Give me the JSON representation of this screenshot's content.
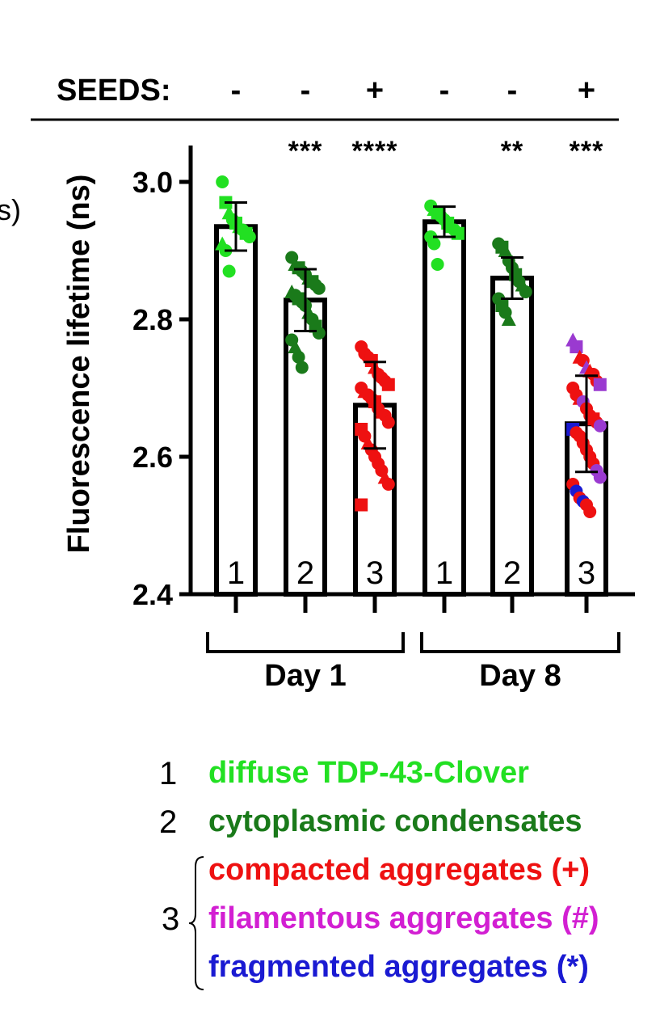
{
  "header": {
    "seeds_label": "SEEDS:",
    "seeds_signs": [
      "-",
      "-",
      "+",
      "-",
      "-",
      "+"
    ]
  },
  "significance": [
    "",
    "***",
    "****",
    "",
    "**",
    "***"
  ],
  "colors": {
    "bright_green": "#22e022",
    "dark_green": "#1a7a1a",
    "red": "#ee1111",
    "magenta": "#d21fd2",
    "blue": "#1a1ad2",
    "purple": "#9a3ad0"
  },
  "chart_data": {
    "type": "bar",
    "ylabel": "Fluorescence lifetime (ns)",
    "ylim": [
      2.4,
      3.05
    ],
    "yticks": [
      2.4,
      2.6,
      2.8,
      3.0
    ],
    "ytick_labels": [
      "2.4",
      "2.6",
      "2.8",
      "3.0"
    ],
    "groups": [
      {
        "label": "Day 1",
        "bars": [
          0,
          1,
          2
        ]
      },
      {
        "label": "Day 8",
        "bars": [
          3,
          4,
          5
        ]
      }
    ],
    "bars": [
      {
        "label": "1",
        "seeds": "-",
        "mean": 2.935,
        "sd": 0.035,
        "sig": "",
        "points": [
          {
            "y": 3.0,
            "shape": "circle",
            "color": "bright_green"
          },
          {
            "y": 2.97,
            "shape": "square",
            "color": "bright_green"
          },
          {
            "y": 2.955,
            "shape": "triangle",
            "color": "bright_green"
          },
          {
            "y": 2.945,
            "shape": "circle",
            "color": "bright_green"
          },
          {
            "y": 2.94,
            "shape": "square",
            "color": "bright_green"
          },
          {
            "y": 2.935,
            "shape": "triangle",
            "color": "bright_green"
          },
          {
            "y": 2.93,
            "shape": "circle",
            "color": "bright_green"
          },
          {
            "y": 2.925,
            "shape": "square",
            "color": "bright_green"
          },
          {
            "y": 2.92,
            "shape": "circle",
            "color": "bright_green"
          },
          {
            "y": 2.91,
            "shape": "triangle",
            "color": "bright_green"
          },
          {
            "y": 2.9,
            "shape": "circle",
            "color": "bright_green"
          },
          {
            "y": 2.87,
            "shape": "circle",
            "color": "bright_green"
          }
        ]
      },
      {
        "label": "2",
        "seeds": "-",
        "mean": 2.828,
        "sd": 0.045,
        "sig": "***",
        "points": [
          {
            "y": 2.89,
            "shape": "circle",
            "color": "dark_green"
          },
          {
            "y": 2.88,
            "shape": "triangle",
            "color": "dark_green"
          },
          {
            "y": 2.875,
            "shape": "square",
            "color": "dark_green"
          },
          {
            "y": 2.87,
            "shape": "circle",
            "color": "dark_green"
          },
          {
            "y": 2.865,
            "shape": "circle",
            "color": "dark_green"
          },
          {
            "y": 2.86,
            "shape": "triangle",
            "color": "dark_green"
          },
          {
            "y": 2.855,
            "shape": "square",
            "color": "dark_green"
          },
          {
            "y": 2.85,
            "shape": "circle",
            "color": "dark_green"
          },
          {
            "y": 2.845,
            "shape": "circle",
            "color": "dark_green"
          },
          {
            "y": 2.84,
            "shape": "triangle",
            "color": "dark_green"
          },
          {
            "y": 2.835,
            "shape": "circle",
            "color": "dark_green"
          },
          {
            "y": 2.83,
            "shape": "square",
            "color": "dark_green"
          },
          {
            "y": 2.825,
            "shape": "circle",
            "color": "dark_green"
          },
          {
            "y": 2.82,
            "shape": "circle",
            "color": "dark_green"
          },
          {
            "y": 2.81,
            "shape": "triangle",
            "color": "dark_green"
          },
          {
            "y": 2.8,
            "shape": "circle",
            "color": "dark_green"
          },
          {
            "y": 2.79,
            "shape": "square",
            "color": "dark_green"
          },
          {
            "y": 2.78,
            "shape": "circle",
            "color": "dark_green"
          },
          {
            "y": 2.77,
            "shape": "circle",
            "color": "dark_green"
          },
          {
            "y": 2.76,
            "shape": "triangle",
            "color": "dark_green"
          },
          {
            "y": 2.745,
            "shape": "circle",
            "color": "dark_green"
          },
          {
            "y": 2.73,
            "shape": "circle",
            "color": "dark_green"
          }
        ]
      },
      {
        "label": "3",
        "seeds": "+",
        "mean": 2.675,
        "sd": 0.063,
        "sig": "****",
        "points": [
          {
            "y": 2.76,
            "shape": "circle",
            "color": "red"
          },
          {
            "y": 2.75,
            "shape": "circle",
            "color": "red"
          },
          {
            "y": 2.745,
            "shape": "circle",
            "color": "red"
          },
          {
            "y": 2.74,
            "shape": "square",
            "color": "red"
          },
          {
            "y": 2.73,
            "shape": "triangle",
            "color": "red"
          },
          {
            "y": 2.72,
            "shape": "circle",
            "color": "red"
          },
          {
            "y": 2.715,
            "shape": "circle",
            "color": "red"
          },
          {
            "y": 2.71,
            "shape": "circle",
            "color": "red"
          },
          {
            "y": 2.705,
            "shape": "square",
            "color": "red"
          },
          {
            "y": 2.7,
            "shape": "circle",
            "color": "red"
          },
          {
            "y": 2.695,
            "shape": "triangle",
            "color": "red"
          },
          {
            "y": 2.69,
            "shape": "circle",
            "color": "red"
          },
          {
            "y": 2.685,
            "shape": "circle",
            "color": "red"
          },
          {
            "y": 2.68,
            "shape": "square",
            "color": "red"
          },
          {
            "y": 2.67,
            "shape": "circle",
            "color": "red"
          },
          {
            "y": 2.665,
            "shape": "triangle",
            "color": "red"
          },
          {
            "y": 2.66,
            "shape": "circle",
            "color": "red"
          },
          {
            "y": 2.65,
            "shape": "circle",
            "color": "red"
          },
          {
            "y": 2.64,
            "shape": "square",
            "color": "red"
          },
          {
            "y": 2.63,
            "shape": "circle",
            "color": "red"
          },
          {
            "y": 2.62,
            "shape": "triangle",
            "color": "red"
          },
          {
            "y": 2.61,
            "shape": "circle",
            "color": "red"
          },
          {
            "y": 2.6,
            "shape": "circle",
            "color": "red"
          },
          {
            "y": 2.59,
            "shape": "circle",
            "color": "red"
          },
          {
            "y": 2.58,
            "shape": "circle",
            "color": "red"
          },
          {
            "y": 2.57,
            "shape": "triangle",
            "color": "red"
          },
          {
            "y": 2.56,
            "shape": "circle",
            "color": "red"
          },
          {
            "y": 2.53,
            "shape": "square",
            "color": "red"
          }
        ]
      },
      {
        "label": "1",
        "seeds": "-",
        "mean": 2.942,
        "sd": 0.022,
        "sig": "",
        "points": [
          {
            "y": 2.965,
            "shape": "circle",
            "color": "bright_green"
          },
          {
            "y": 2.96,
            "shape": "triangle",
            "color": "bright_green"
          },
          {
            "y": 2.955,
            "shape": "square",
            "color": "bright_green"
          },
          {
            "y": 2.95,
            "shape": "circle",
            "color": "bright_green"
          },
          {
            "y": 2.945,
            "shape": "circle",
            "color": "bright_green"
          },
          {
            "y": 2.94,
            "shape": "square",
            "color": "bright_green"
          },
          {
            "y": 2.935,
            "shape": "triangle",
            "color": "bright_green"
          },
          {
            "y": 2.93,
            "shape": "circle",
            "color": "bright_green"
          },
          {
            "y": 2.925,
            "shape": "square",
            "color": "bright_green"
          },
          {
            "y": 2.92,
            "shape": "circle",
            "color": "bright_green"
          },
          {
            "y": 2.91,
            "shape": "circle",
            "color": "bright_green"
          },
          {
            "y": 2.88,
            "shape": "circle",
            "color": "bright_green"
          }
        ]
      },
      {
        "label": "2",
        "seeds": "-",
        "mean": 2.86,
        "sd": 0.03,
        "sig": "**",
        "points": [
          {
            "y": 2.91,
            "shape": "circle",
            "color": "dark_green"
          },
          {
            "y": 2.905,
            "shape": "square",
            "color": "dark_green"
          },
          {
            "y": 2.9,
            "shape": "triangle",
            "color": "dark_green"
          },
          {
            "y": 2.885,
            "shape": "circle",
            "color": "dark_green"
          },
          {
            "y": 2.875,
            "shape": "circle",
            "color": "dark_green"
          },
          {
            "y": 2.865,
            "shape": "square",
            "color": "dark_green"
          },
          {
            "y": 2.855,
            "shape": "circle",
            "color": "dark_green"
          },
          {
            "y": 2.85,
            "shape": "triangle",
            "color": "dark_green"
          },
          {
            "y": 2.84,
            "shape": "circle",
            "color": "dark_green"
          },
          {
            "y": 2.83,
            "shape": "circle",
            "color": "dark_green"
          },
          {
            "y": 2.82,
            "shape": "square",
            "color": "dark_green"
          },
          {
            "y": 2.81,
            "shape": "circle",
            "color": "dark_green"
          },
          {
            "y": 2.8,
            "shape": "triangle",
            "color": "dark_green"
          }
        ]
      },
      {
        "label": "3",
        "seeds": "+",
        "mean": 2.648,
        "sd": 0.07,
        "sig": "***",
        "points": [
          {
            "y": 2.77,
            "shape": "triangle",
            "color": "purple"
          },
          {
            "y": 2.76,
            "shape": "square",
            "color": "purple"
          },
          {
            "y": 2.745,
            "shape": "triangle",
            "color": "red"
          },
          {
            "y": 2.74,
            "shape": "circle",
            "color": "red"
          },
          {
            "y": 2.73,
            "shape": "triangle",
            "color": "purple"
          },
          {
            "y": 2.725,
            "shape": "triangle",
            "color": "red"
          },
          {
            "y": 2.72,
            "shape": "circle",
            "color": "red"
          },
          {
            "y": 2.71,
            "shape": "circle",
            "color": "red"
          },
          {
            "y": 2.705,
            "shape": "square",
            "color": "purple"
          },
          {
            "y": 2.7,
            "shape": "circle",
            "color": "red"
          },
          {
            "y": 2.69,
            "shape": "circle",
            "color": "red"
          },
          {
            "y": 2.685,
            "shape": "triangle",
            "color": "red"
          },
          {
            "y": 2.68,
            "shape": "circle",
            "color": "purple"
          },
          {
            "y": 2.67,
            "shape": "circle",
            "color": "red"
          },
          {
            "y": 2.66,
            "shape": "circle",
            "color": "red"
          },
          {
            "y": 2.655,
            "shape": "square",
            "color": "red"
          },
          {
            "y": 2.65,
            "shape": "circle",
            "color": "red"
          },
          {
            "y": 2.645,
            "shape": "circle",
            "color": "purple"
          },
          {
            "y": 2.64,
            "shape": "square",
            "color": "blue"
          },
          {
            "y": 2.635,
            "shape": "circle",
            "color": "red"
          },
          {
            "y": 2.63,
            "shape": "circle",
            "color": "red"
          },
          {
            "y": 2.62,
            "shape": "circle",
            "color": "red"
          },
          {
            "y": 2.61,
            "shape": "circle",
            "color": "red"
          },
          {
            "y": 2.6,
            "shape": "circle",
            "color": "red"
          },
          {
            "y": 2.59,
            "shape": "circle",
            "color": "red"
          },
          {
            "y": 2.58,
            "shape": "circle",
            "color": "purple"
          },
          {
            "y": 2.57,
            "shape": "circle",
            "color": "purple"
          },
          {
            "y": 2.56,
            "shape": "circle",
            "color": "red"
          },
          {
            "y": 2.55,
            "shape": "circle",
            "color": "blue"
          },
          {
            "y": 2.54,
            "shape": "circle",
            "color": "red"
          },
          {
            "y": 2.535,
            "shape": "circle",
            "color": "blue"
          },
          {
            "y": 2.53,
            "shape": "circle",
            "color": "red"
          },
          {
            "y": 2.52,
            "shape": "circle",
            "color": "red"
          }
        ]
      }
    ]
  },
  "legend": {
    "items": [
      {
        "num": "1",
        "text": "diffuse TDP-43-Clover",
        "color": "bright_green"
      },
      {
        "num": "2",
        "text": "cytoplasmic condensates",
        "color": "dark_green"
      },
      {
        "num": "3",
        "text": "compacted aggregates (+)",
        "color": "red"
      },
      {
        "num": "",
        "text": "filamentous aggregates (#)",
        "color": "magenta"
      },
      {
        "num": "",
        "text": "fragmented aggregates (*)",
        "color": "blue"
      }
    ]
  },
  "clipped_left_text": "s)"
}
